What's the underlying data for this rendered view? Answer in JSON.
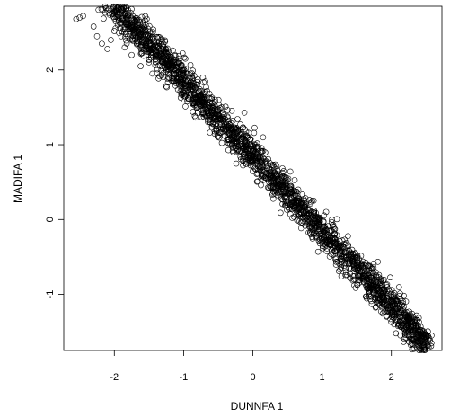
{
  "chart_data": {
    "type": "scatter",
    "title": "",
    "xlabel": "DUNNFA 1",
    "ylabel": "MADIFA 1",
    "xlim": [
      -2.73,
      2.73
    ],
    "ylim": [
      -1.75,
      2.85
    ],
    "xticks": [
      -2,
      -1,
      0,
      1,
      2
    ],
    "yticks": [
      -1,
      0,
      1,
      2
    ],
    "xtick_labels": [
      "-2",
      "-1",
      "0",
      "1",
      "2"
    ],
    "ytick_labels": [
      "-1",
      "0",
      "1",
      "2"
    ],
    "grid": false,
    "marker": "open-circle",
    "color": "#000000",
    "trend": {
      "slope": -1.0,
      "intercept": 0.85,
      "x_range": [
        -2.5,
        2.55
      ]
    },
    "points": [
      [
        -2.55,
        2.68
      ],
      [
        -2.5,
        2.7
      ],
      [
        -2.45,
        2.72
      ],
      [
        -2.3,
        2.58
      ],
      [
        -2.25,
        2.45
      ],
      [
        -2.18,
        2.35
      ],
      [
        -2.1,
        2.28
      ],
      [
        -2.05,
        2.4
      ],
      [
        -2.0,
        2.52
      ],
      [
        -1.95,
        2.6
      ],
      [
        -1.9,
        2.45
      ],
      [
        -1.85,
        2.3
      ],
      [
        -1.8,
        2.55
      ],
      [
        -1.75,
        2.2
      ],
      [
        -1.7,
        2.42
      ],
      [
        -1.62,
        2.05
      ],
      [
        -1.55,
        2.32
      ],
      [
        -1.5,
        2.1
      ],
      [
        -1.45,
        1.95
      ],
      [
        -1.4,
        2.25
      ],
      [
        -1.32,
        2.0
      ],
      [
        -1.25,
        1.78
      ],
      [
        -1.2,
        2.08
      ],
      [
        -1.1,
        1.85
      ],
      [
        -1.0,
        1.7
      ],
      [
        -0.95,
        1.95
      ],
      [
        -0.85,
        1.55
      ],
      [
        -0.75,
        1.65
      ],
      [
        -0.65,
        1.45
      ],
      [
        -0.55,
        1.35
      ],
      [
        -0.45,
        1.5
      ],
      [
        -0.35,
        1.15
      ],
      [
        -0.25,
        1.2
      ],
      [
        -0.15,
        0.98
      ],
      [
        -0.05,
        0.95
      ],
      [
        0.05,
        0.78
      ],
      [
        0.15,
        0.82
      ],
      [
        0.25,
        0.55
      ],
      [
        0.35,
        0.6
      ],
      [
        0.45,
        0.38
      ],
      [
        0.55,
        0.3
      ],
      [
        0.65,
        0.12
      ],
      [
        0.75,
        0.15
      ],
      [
        0.85,
        -0.05
      ],
      [
        0.95,
        0.02
      ],
      [
        1.05,
        -0.22
      ],
      [
        1.15,
        -0.3
      ],
      [
        1.25,
        -0.35
      ],
      [
        1.35,
        -0.5
      ],
      [
        1.45,
        -0.55
      ],
      [
        1.55,
        -0.72
      ],
      [
        1.65,
        -0.78
      ],
      [
        1.75,
        -0.9
      ],
      [
        1.85,
        -0.98
      ],
      [
        1.95,
        -1.1
      ],
      [
        2.05,
        -1.2
      ],
      [
        2.15,
        -1.15
      ],
      [
        2.22,
        -1.3
      ],
      [
        2.3,
        -1.35
      ],
      [
        2.38,
        -1.45
      ],
      [
        2.48,
        -1.52
      ],
      [
        2.58,
        -1.55
      ]
    ]
  }
}
